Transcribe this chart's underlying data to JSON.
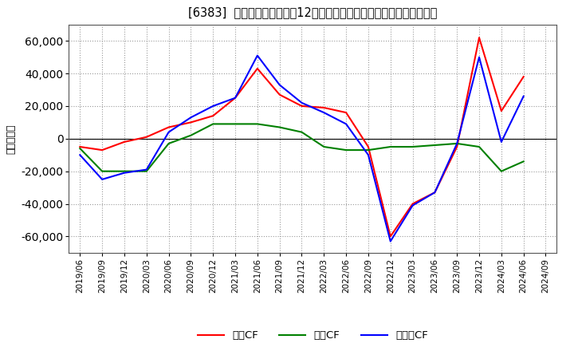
{
  "title": "[6383]  キャッシュフローの12か月移動合計の対前年同期増減額の推移",
  "ylabel": "（百万円）",
  "background_color": "#ffffff",
  "plot_bg_color": "#ffffff",
  "grid_color": "#999999",
  "ylim": [
    -70000,
    70000
  ],
  "yticks": [
    -60000,
    -40000,
    -20000,
    0,
    20000,
    40000,
    60000
  ],
  "dates": [
    "2019/06",
    "2019/09",
    "2019/12",
    "2020/03",
    "2020/06",
    "2020/09",
    "2020/12",
    "2021/03",
    "2021/06",
    "2021/09",
    "2021/12",
    "2022/03",
    "2022/06",
    "2022/09",
    "2022/12",
    "2023/03",
    "2023/06",
    "2023/09",
    "2023/12",
    "2024/03",
    "2024/06",
    "2024/09"
  ],
  "eigyo_cf": [
    -5000,
    -7000,
    -2000,
    1000,
    7000,
    10000,
    14000,
    25000,
    43000,
    27000,
    20000,
    19000,
    16000,
    -5000,
    -60000,
    -40000,
    -33000,
    -5000,
    62000,
    17000,
    38000,
    null
  ],
  "toshi_cf": [
    -6000,
    -20000,
    -20000,
    -20000,
    -3000,
    2000,
    9000,
    9000,
    9000,
    7000,
    4000,
    -5000,
    -7000,
    -7000,
    -5000,
    -5000,
    -4000,
    -3000,
    -5000,
    -20000,
    -14000,
    null
  ],
  "free_cf": [
    -10000,
    -25000,
    -21000,
    -19000,
    4000,
    13000,
    20000,
    25000,
    51000,
    33000,
    22000,
    16000,
    9000,
    -10000,
    -63000,
    -41000,
    -33000,
    -3000,
    50000,
    -2000,
    26000,
    null
  ],
  "eigyo_color": "#ff0000",
  "toshi_color": "#008000",
  "free_color": "#0000ff",
  "line_width": 1.5,
  "legend_labels": [
    "営業CF",
    "投資CF",
    "フリーCF"
  ]
}
